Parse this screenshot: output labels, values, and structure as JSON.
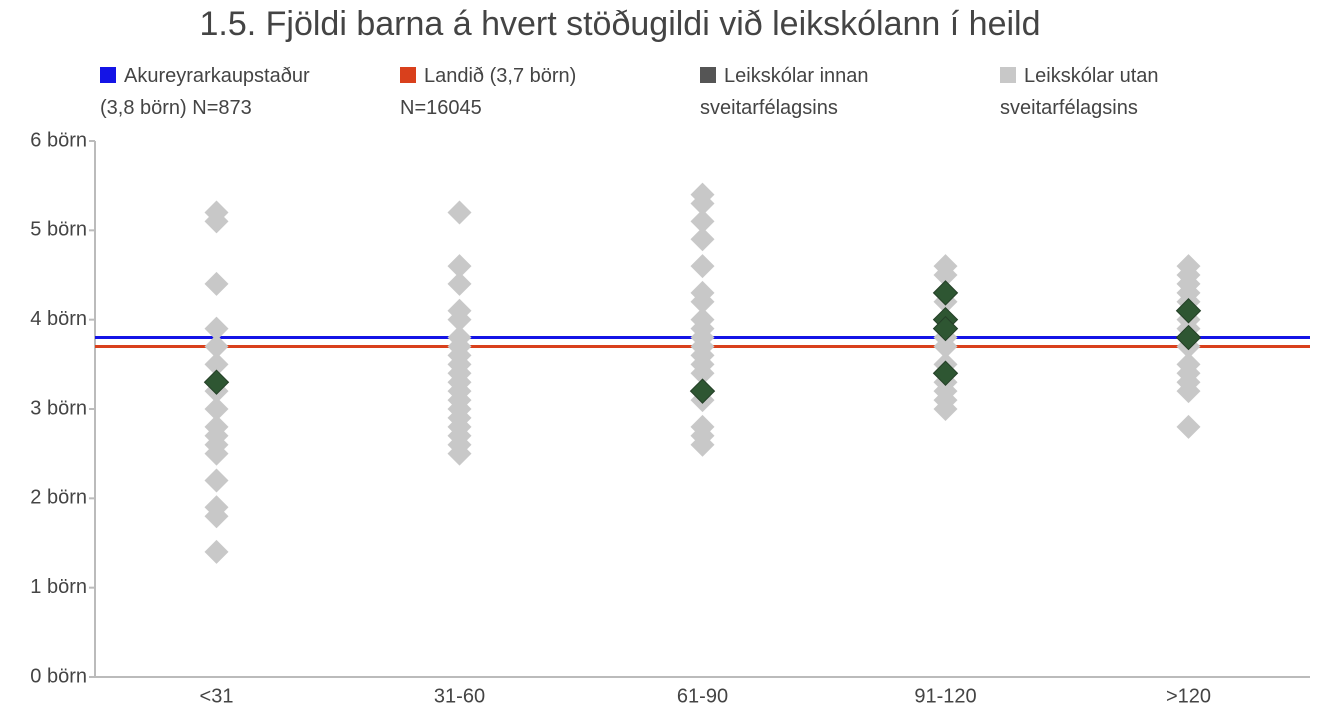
{
  "chart_data": {
    "type": "scatter",
    "title": "1.5. Fjöldi barna á hvert stöðugildi við leikskólann í heild",
    "categories": [
      "<31",
      "31-60",
      "61-90",
      "91-120",
      ">120"
    ],
    "ylim": [
      0,
      6
    ],
    "yticks": [
      {
        "value": 0,
        "label": "0 börn"
      },
      {
        "value": 1,
        "label": "1 börn"
      },
      {
        "value": 2,
        "label": "2 börn"
      },
      {
        "value": 3,
        "label": "3 börn"
      },
      {
        "value": 4,
        "label": "4 börn"
      },
      {
        "value": 5,
        "label": "5 börn"
      },
      {
        "value": 6,
        "label": "6 börn"
      }
    ],
    "series": [
      {
        "name": "Akureyrarkaupstaður (3,8 börn) N=873",
        "color": "#1414e6",
        "values": 3.8
      },
      {
        "name": "Landið (3,7 börn) N=16045",
        "color": "#d9401c",
        "values": 3.7
      },
      {
        "name": "Leikskólar utan sveitarfélagsins",
        "color": "#c8c8c8",
        "values": [
          [
            5.2,
            5.1,
            4.4,
            3.9,
            3.7,
            3.5,
            3.3,
            3.2,
            3.0,
            2.8,
            2.7,
            2.6,
            2.5,
            2.2,
            1.9,
            1.8,
            1.4
          ],
          [
            5.2,
            4.6,
            4.4,
            4.1,
            4.0,
            3.8,
            3.7,
            3.6,
            3.5,
            3.4,
            3.3,
            3.2,
            3.1,
            3.0,
            2.9,
            2.8,
            2.7,
            2.6,
            2.5
          ],
          [
            5.4,
            5.3,
            5.1,
            4.9,
            4.6,
            4.3,
            4.2,
            4.0,
            3.9,
            3.8,
            3.7,
            3.6,
            3.5,
            3.4,
            3.2,
            3.1,
            2.8,
            2.7,
            2.6
          ],
          [
            4.6,
            4.5,
            4.3,
            4.2,
            4.0,
            3.9,
            3.8,
            3.7,
            3.5,
            3.3,
            3.2,
            3.1,
            3.0
          ],
          [
            4.6,
            4.5,
            4.4,
            4.3,
            4.2,
            4.1,
            4.0,
            3.9,
            3.8,
            3.7,
            3.5,
            3.4,
            3.3,
            3.2,
            2.8
          ]
        ]
      },
      {
        "name": "Leikskólar innan sveitarfélagsins",
        "color": "#2e5632",
        "legend_color": "#555555",
        "values": [
          [
            3.3
          ],
          [],
          [
            3.2
          ],
          [
            4.3,
            4.0,
            3.9,
            3.4
          ],
          [
            4.1,
            3.8
          ]
        ]
      }
    ],
    "legend_order": [
      0,
      1,
      3,
      2
    ]
  }
}
